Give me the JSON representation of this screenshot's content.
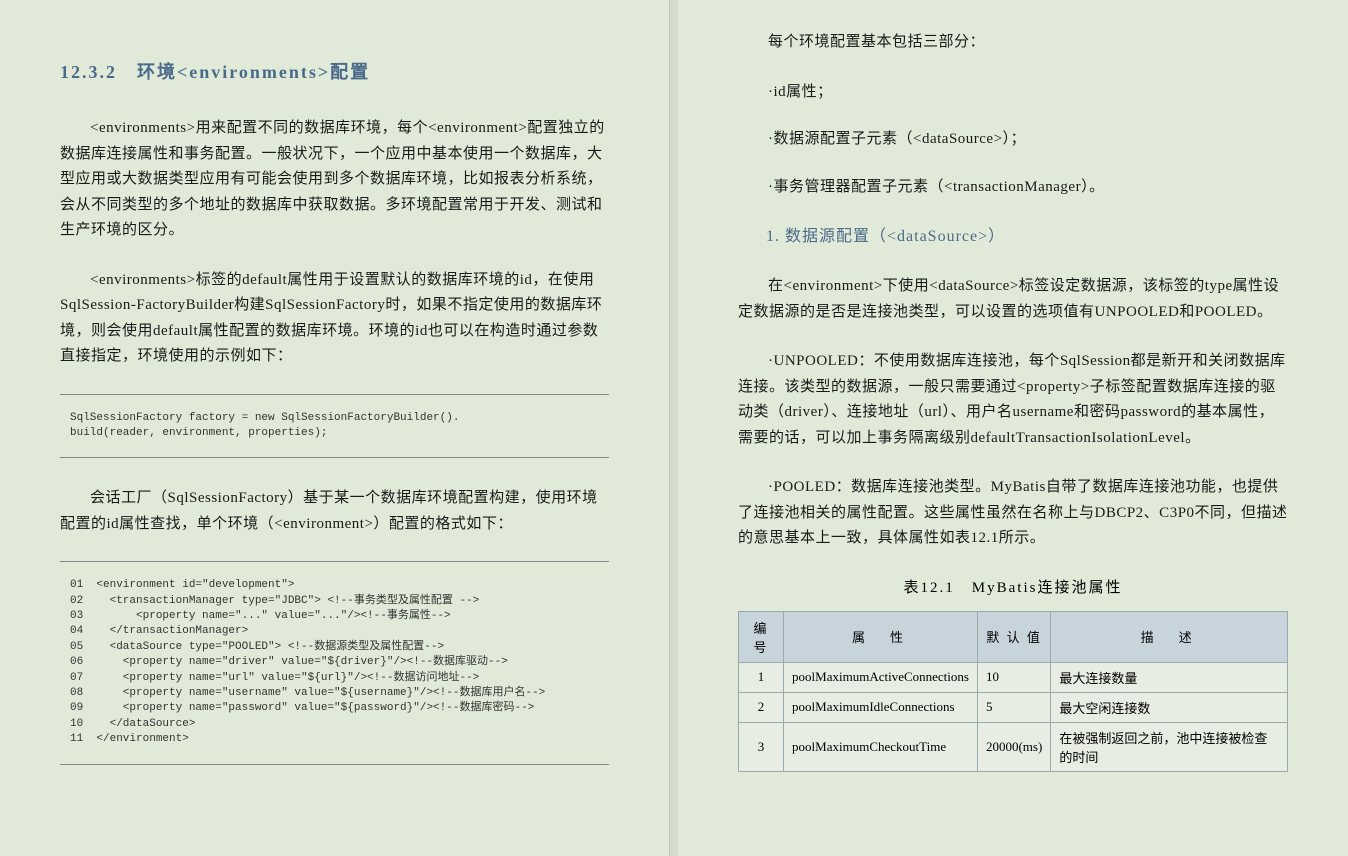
{
  "left": {
    "heading": "12.3.2　环境<environments>配置",
    "para1": "<environments>用来配置不同的数据库环境，每个<environment>配置独立的数据库连接属性和事务配置。一般状况下，一个应用中基本使用一个数据库，大型应用或大数据类型应用有可能会使用到多个数据库环境，比如报表分析系统，会从不同类型的多个地址的数据库中获取数据。多环境配置常用于开发、测试和生产环境的区分。",
    "para2": "<environments>标签的default属性用于设置默认的数据库环境的id，在使用SqlSession-FactoryBuilder构建SqlSessionFactory时，如果不指定使用的数据库环境，则会使用default属性配置的数据库环境。环境的id也可以在构造时通过参数直接指定，环境使用的示例如下：",
    "code1": "SqlSessionFactory factory = new SqlSessionFactoryBuilder().\nbuild(reader, environment, properties);",
    "para3": "会话工厂（SqlSessionFactory）基于某一个数据库环境配置构建，使用环境配置的id属性查找，单个环境（<environment>）配置的格式如下：",
    "code2": "01  <environment id=\"development\">\n02    <transactionManager type=\"JDBC\"> <!--事务类型及属性配置 -->\n03        <property name=\"...\" value=\"...\"/><!--事务属性-->\n04    </transactionManager>\n05    <dataSource type=\"POOLED\"> <!--数据源类型及属性配置-->\n06      <property name=\"driver\" value=\"${driver}\"/><!--数据库驱动-->\n07      <property name=\"url\" value=\"${url}\"/><!--数据访问地址-->\n08      <property name=\"username\" value=\"${username}\"/><!--数据库用户名-->\n09      <property name=\"password\" value=\"${password}\"/><!--数据库密码-->\n10    </dataSource>\n11  </environment>"
  },
  "right": {
    "para1": "每个环境配置基本包括三部分：",
    "bullet1": "·id属性；",
    "bullet2": "·数据源配置子元素（<dataSource>）；",
    "bullet3": "·事务管理器配置子元素（<transactionManager）。",
    "subheading": "1. 数据源配置（<dataSource>）",
    "para2": "在<environment>下使用<dataSource>标签设定数据源，该标签的type属性设定数据源的是否是连接池类型，可以设置的选项值有UNPOOLED和POOLED。",
    "para3": "·UNPOOLED：不使用数据库连接池，每个SqlSession都是新开和关闭数据库连接。该类型的数据源，一般只需要通过<property>子标签配置数据库连接的驱动类（driver）、连接地址（url）、用户名username和密码password的基本属性，需要的话，可以加上事务隔离级别defaultTransactionIsolationLevel。",
    "para4": "·POOLED：数据库连接池类型。MyBatis自带了数据库连接池功能，也提供了连接池相关的属性配置。这些属性虽然在名称上与DBCP2、C3P0不同，但描述的意思基本上一致，具体属性如表12.1所示。",
    "table_caption": "表12.1　MyBatis连接池属性",
    "table": {
      "headers": {
        "c1": "编号",
        "c2": "属　性",
        "c3": "默 认 值",
        "c4": "描　述"
      },
      "rows": [
        {
          "n": "1",
          "prop": "poolMaximumActiveConnections",
          "def": "10",
          "desc": "最大连接数量"
        },
        {
          "n": "2",
          "prop": "poolMaximumIdleConnections",
          "def": "5",
          "desc": "最大空闲连接数"
        },
        {
          "n": "3",
          "prop": "poolMaximumCheckoutTime",
          "def": "20000(ms)",
          "desc": "在被强制返回之前，池中连接被检查的时间"
        }
      ]
    }
  }
}
